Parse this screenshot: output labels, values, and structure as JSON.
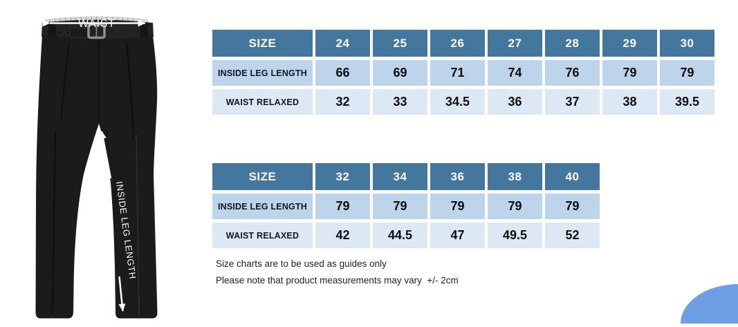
{
  "product_diagram": {
    "waist_label": "WAIST",
    "inside_leg_label": "INSIDE LEG LENGTH"
  },
  "tables": [
    {
      "header_label": "SIZE",
      "sizes": [
        "24",
        "25",
        "26",
        "27",
        "28",
        "29",
        "30"
      ],
      "rows": [
        {
          "label": "INSIDE LEG LENGTH",
          "values": [
            "66",
            "69",
            "71",
            "74",
            "76",
            "79",
            "79"
          ]
        },
        {
          "label": "WAIST RELAXED",
          "values": [
            "32",
            "33",
            "34.5",
            "36",
            "37",
            "38",
            "39.5"
          ]
        }
      ]
    },
    {
      "header_label": "SIZE",
      "sizes": [
        "32",
        "34",
        "36",
        "38",
        "40"
      ],
      "rows": [
        {
          "label": "INSIDE LEG LENGTH",
          "values": [
            "79",
            "79",
            "79",
            "79",
            "79"
          ]
        },
        {
          "label": "WAIST RELAXED",
          "values": [
            "42",
            "44.5",
            "47",
            "49.5",
            "52"
          ]
        }
      ]
    }
  ],
  "notes": {
    "line1": "Size charts are to be used as guides only",
    "line2": "Please note that product measurements may vary  +/- 2cm"
  },
  "chart_data": [
    {
      "type": "table",
      "title": "Trouser size chart (sizes 24-30)",
      "columns": [
        "SIZE",
        "24",
        "25",
        "26",
        "27",
        "28",
        "29",
        "30"
      ],
      "rows": [
        [
          "INSIDE LEG LENGTH",
          66,
          69,
          71,
          74,
          76,
          79,
          79
        ],
        [
          "WAIST RELAXED",
          32,
          33,
          34.5,
          36,
          37,
          38,
          39.5
        ]
      ]
    },
    {
      "type": "table",
      "title": "Trouser size chart (sizes 32-40)",
      "columns": [
        "SIZE",
        "32",
        "34",
        "36",
        "38",
        "40"
      ],
      "rows": [
        [
          "INSIDE LEG LENGTH",
          79,
          79,
          79,
          79,
          79
        ],
        [
          "WAIST RELAXED",
          42,
          44.5,
          47,
          49.5,
          52
        ]
      ]
    }
  ],
  "colors": {
    "header_bg": "#44779E",
    "header_text": "#FFFFFF",
    "row1_bg": "#BCD5EA",
    "row2_bg": "#DCE8F4",
    "corner_accent": "#6C9FE3"
  }
}
